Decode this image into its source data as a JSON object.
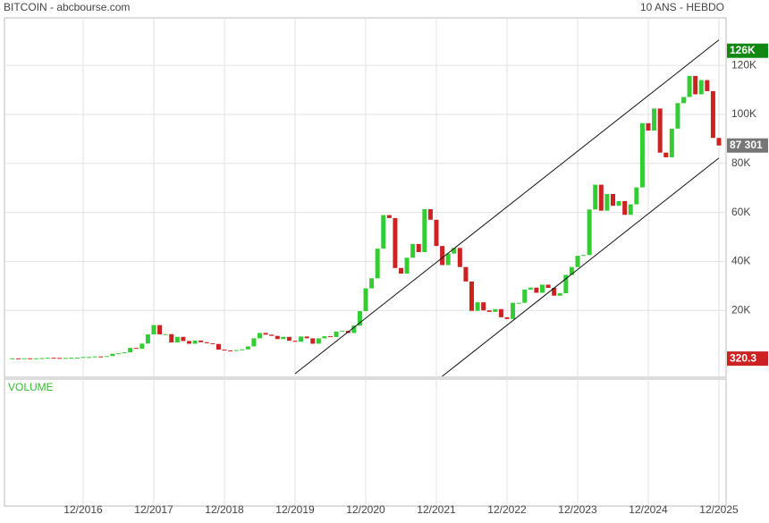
{
  "chart_data": {
    "type": "candlestick",
    "title": "BITCOIN - abcbourse.com",
    "subtitle": "10 ANS - HEBDO",
    "volume_label": "VOLUME",
    "x": [
      "2015-12",
      "2016-01",
      "2016-02",
      "2016-03",
      "2016-04",
      "2016-05",
      "2016-06",
      "2016-07",
      "2016-08",
      "2016-09",
      "2016-10",
      "2016-11",
      "2016-12",
      "2017-01",
      "2017-02",
      "2017-03",
      "2017-04",
      "2017-05",
      "2017-06",
      "2017-07",
      "2017-08",
      "2017-09",
      "2017-10",
      "2017-11",
      "2017-12",
      "2018-01",
      "2018-02",
      "2018-03",
      "2018-04",
      "2018-05",
      "2018-06",
      "2018-07",
      "2018-08",
      "2018-09",
      "2018-10",
      "2018-11",
      "2018-12",
      "2019-01",
      "2019-02",
      "2019-03",
      "2019-04",
      "2019-05",
      "2019-06",
      "2019-07",
      "2019-08",
      "2019-09",
      "2019-10",
      "2019-11",
      "2019-12",
      "2020-01",
      "2020-02",
      "2020-03",
      "2020-04",
      "2020-05",
      "2020-06",
      "2020-07",
      "2020-08",
      "2020-09",
      "2020-10",
      "2020-11",
      "2020-12",
      "2021-01",
      "2021-02",
      "2021-03",
      "2021-04",
      "2021-05",
      "2021-06",
      "2021-07",
      "2021-08",
      "2021-09",
      "2021-10",
      "2021-11",
      "2021-12",
      "2022-01",
      "2022-02",
      "2022-03",
      "2022-04",
      "2022-05",
      "2022-06",
      "2022-07",
      "2022-08",
      "2022-09",
      "2022-10",
      "2022-11",
      "2022-12",
      "2023-01",
      "2023-02",
      "2023-03",
      "2023-04",
      "2023-05",
      "2023-06",
      "2023-07",
      "2023-08",
      "2023-09",
      "2023-10",
      "2023-11",
      "2023-12",
      "2024-01",
      "2024-02",
      "2024-03",
      "2024-04",
      "2024-05",
      "2024-06",
      "2024-07",
      "2024-08",
      "2024-09",
      "2024-10",
      "2024-11",
      "2024-12",
      "2025-01",
      "2025-02",
      "2025-03",
      "2025-04",
      "2025-05",
      "2025-06",
      "2025-07",
      "2025-08",
      "2025-09",
      "2025-10",
      "2025-11",
      "2025-12"
    ],
    "open": [
      400,
      430,
      370,
      440,
      415,
      450,
      530,
      670,
      620,
      575,
      610,
      700,
      740,
      960,
      970,
      1190,
      1080,
      1350,
      2300,
      2480,
      2870,
      4700,
      4340,
      6450,
      10200,
      14000,
      10200,
      10300,
      6900,
      9200,
      7500,
      6400,
      7700,
      7000,
      6600,
      6300,
      4000,
      3700,
      3450,
      3800,
      4100,
      5300,
      8600,
      10800,
      10100,
      9600,
      8300,
      9200,
      7600,
      7200,
      9350,
      8600,
      6400,
      8600,
      9450,
      9140,
      11350,
      11650,
      10780,
      13800,
      19700,
      29000,
      33100,
      45200,
      58900,
      57700,
      37300,
      35000,
      41500,
      47100,
      43800,
      61300,
      57000,
      46300,
      38500,
      43200,
      45500,
      37700,
      31800,
      19800,
      23300,
      20000,
      19400,
      20500,
      17200,
      16500,
      23100,
      23100,
      28500,
      29300,
      27200,
      30500,
      29200,
      26000,
      27000,
      34500,
      37700,
      42300,
      42600,
      61200,
      71300,
      60700,
      67500,
      62700,
      64600,
      59000,
      63300,
      70200,
      96400,
      93400,
      102400,
      84400,
      82500,
      94200,
      104600,
      107100,
      115700,
      108200,
      114000,
      109500,
      90400
    ],
    "close": [
      430,
      370,
      440,
      415,
      450,
      530,
      670,
      620,
      575,
      610,
      700,
      740,
      960,
      970,
      1190,
      1080,
      1350,
      2300,
      2480,
      2870,
      4700,
      4340,
      6450,
      10200,
      14000,
      10200,
      10300,
      6900,
      9200,
      7500,
      6400,
      7700,
      7000,
      6600,
      6300,
      4000,
      3700,
      3450,
      3800,
      4100,
      5300,
      8600,
      10800,
      10100,
      9600,
      8300,
      9200,
      7600,
      7200,
      9350,
      8600,
      6400,
      8600,
      9450,
      9140,
      11350,
      11650,
      10780,
      13800,
      19700,
      29000,
      33100,
      45200,
      58900,
      57700,
      37300,
      35000,
      41500,
      47100,
      43800,
      61300,
      57000,
      46300,
      38500,
      43200,
      45500,
      37700,
      31800,
      19800,
      23300,
      20000,
      19400,
      20500,
      17200,
      16500,
      23100,
      23100,
      28500,
      29300,
      27200,
      30500,
      29200,
      26000,
      27000,
      34500,
      37700,
      42300,
      42600,
      61200,
      71300,
      60700,
      67500,
      62700,
      64600,
      59000,
      63300,
      70200,
      96400,
      93400,
      102400,
      84400,
      82500,
      94200,
      104600,
      107100,
      115700,
      108200,
      114000,
      109500,
      90400,
      87301
    ],
    "up_color": "#33cc33",
    "down_color": "#cc2222",
    "ylim": [
      -7300,
      139400
    ],
    "yticks": [
      {
        "value": 20000,
        "label": "20K"
      },
      {
        "value": 40000,
        "label": "40K"
      },
      {
        "value": 60000,
        "label": "60K"
      },
      {
        "value": 80000,
        "label": "80K"
      },
      {
        "value": 100000,
        "label": "100K"
      },
      {
        "value": 120000,
        "label": "120K"
      }
    ],
    "xticks": [
      {
        "value": "2016-12",
        "label": "12/2016"
      },
      {
        "value": "2017-12",
        "label": "12/2017"
      },
      {
        "value": "2018-12",
        "label": "12/2018"
      },
      {
        "value": "2019-12",
        "label": "12/2019"
      },
      {
        "value": "2020-12",
        "label": "12/2020"
      },
      {
        "value": "2021-12",
        "label": "12/2021"
      },
      {
        "value": "2022-12",
        "label": "12/2022"
      },
      {
        "value": "2023-12",
        "label": "12/2023"
      },
      {
        "value": "2024-12",
        "label": "12/2024"
      },
      {
        "value": "2025-12",
        "label": "12/2025"
      }
    ],
    "grid": true,
    "trendlines": [
      {
        "x": [
          "2019-12",
          "2025-12"
        ],
        "values": [
          -5840,
          130400
        ]
      },
      {
        "x": [
          "2022-01",
          "2025-12"
        ],
        "values": [
          -6900,
          82200
        ]
      }
    ],
    "price_marks": [
      {
        "value": 126000,
        "label": "126K",
        "color": "#118811"
      },
      {
        "value": 87301,
        "label": "87 301",
        "color": "#777777"
      },
      {
        "value": 320.3,
        "label": "320.3",
        "color": "#cc2222"
      }
    ]
  }
}
